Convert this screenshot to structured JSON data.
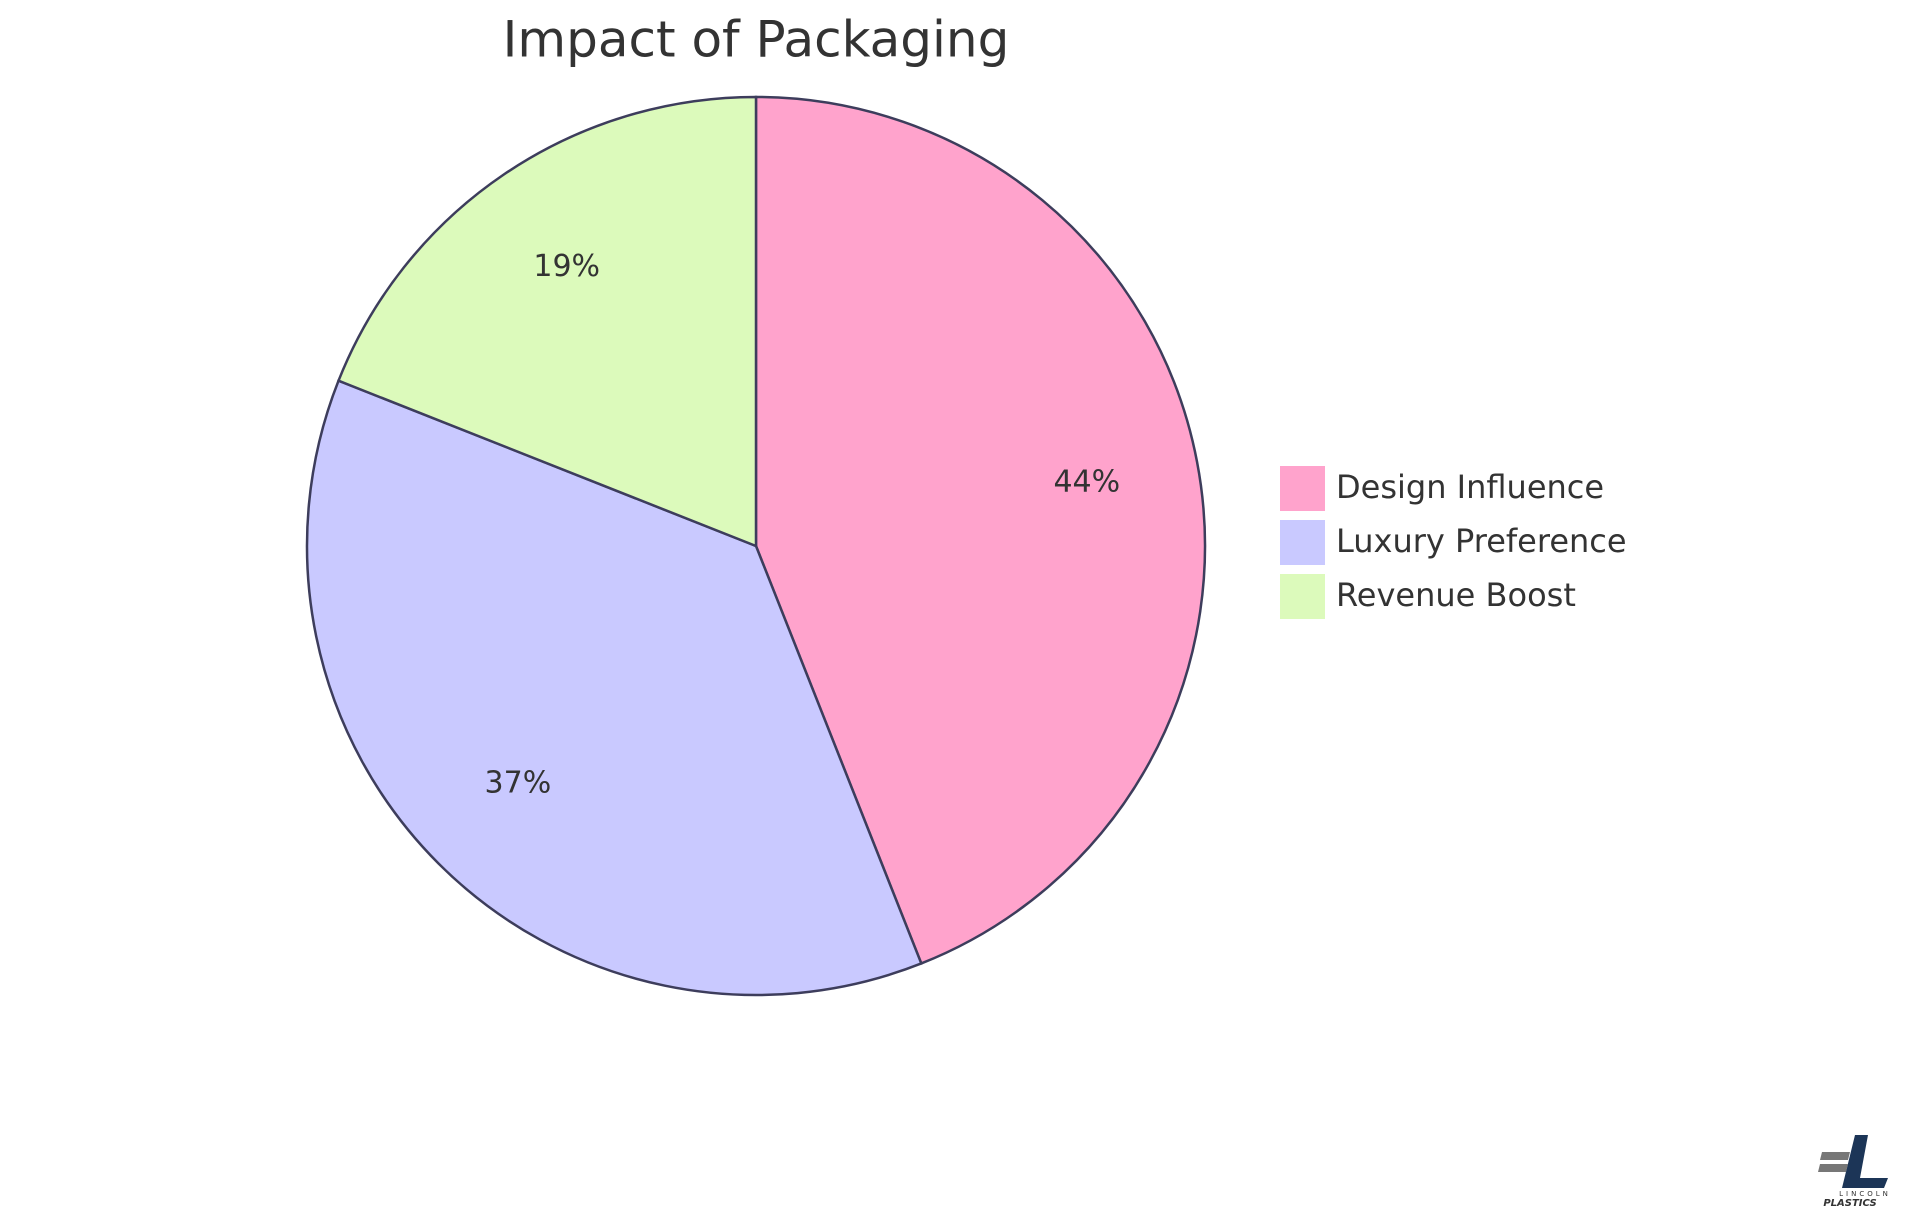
{
  "chart_data": {
    "type": "pie",
    "title": "Impact of Packaging",
    "categories": [
      "Design Influence",
      "Luxury Preference",
      "Revenue Boost"
    ],
    "values": [
      44,
      37,
      19
    ],
    "value_labels": [
      "44%",
      "37%",
      "19%"
    ],
    "colors": [
      "#ffa3cc",
      "#c9c9ff",
      "#dcfabb"
    ],
    "legend": "right"
  },
  "logo": {
    "name": "LINCOLN",
    "subtitle": "PLASTICS"
  }
}
